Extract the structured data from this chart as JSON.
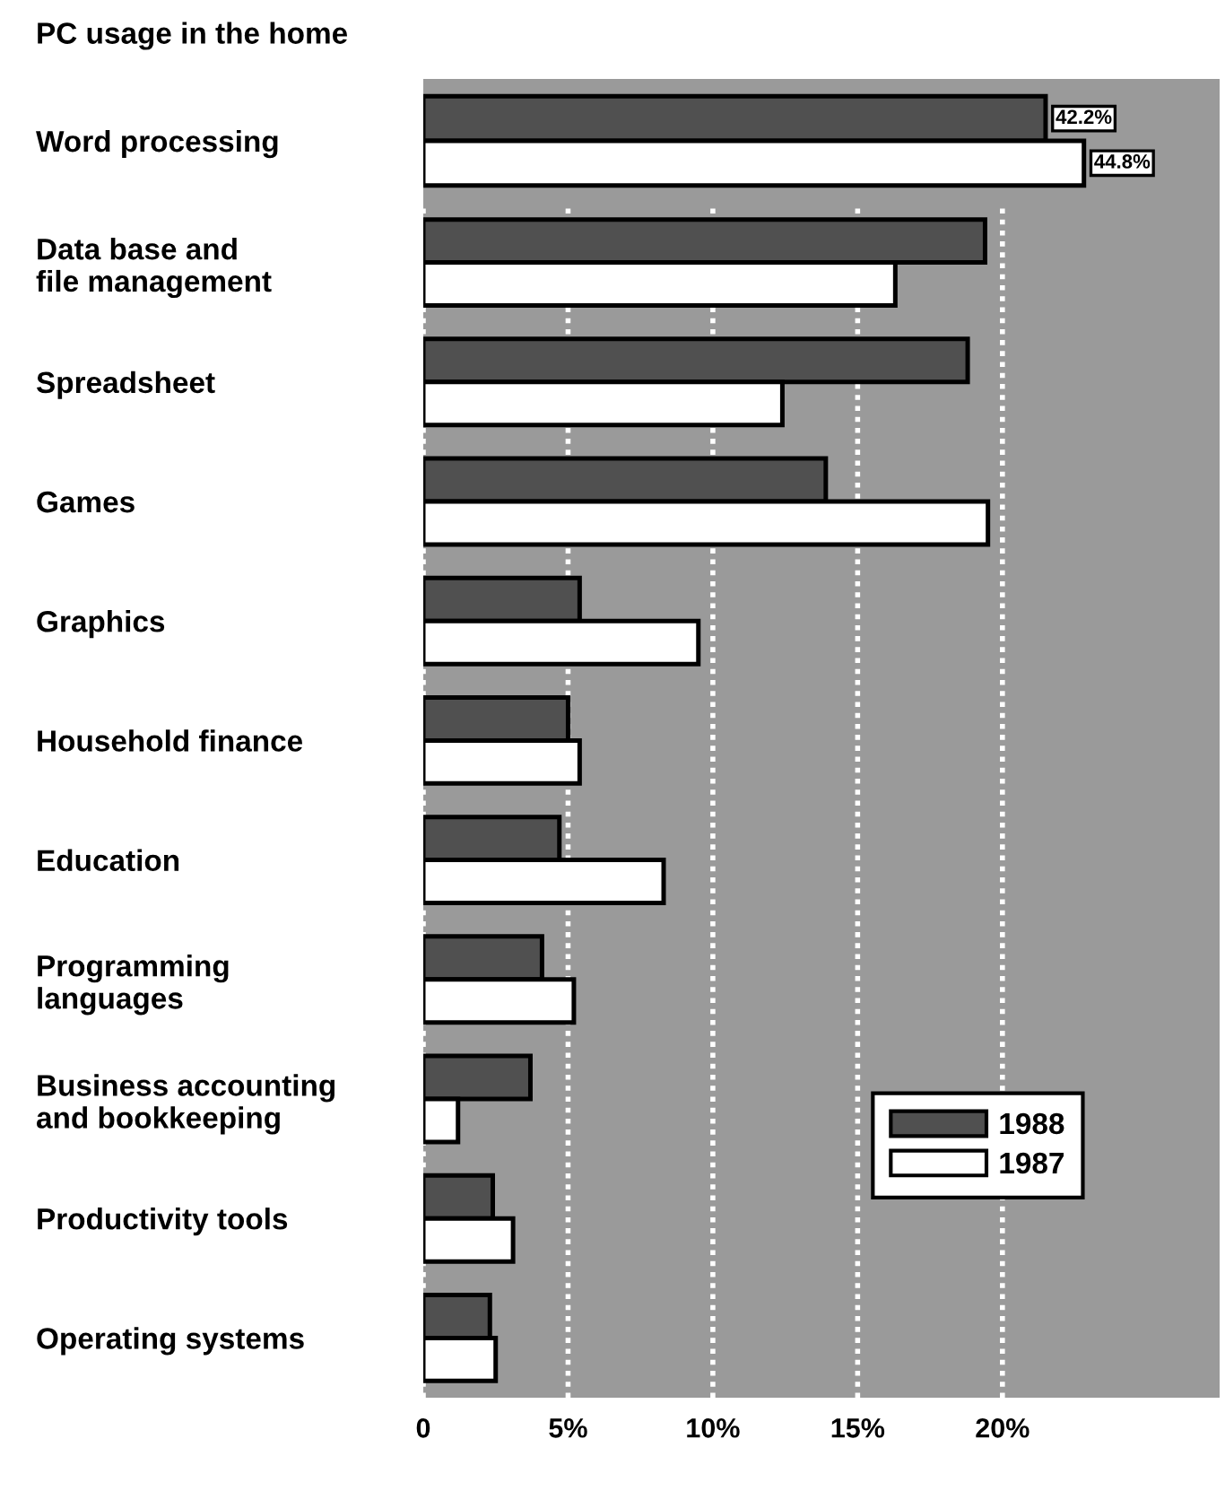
{
  "chart_data": [
    {
      "type": "bar",
      "orientation": "horizontal",
      "title": "PC usage in the home",
      "categories": [
        "Word processing"
      ],
      "series": [
        {
          "color": "#505050",
          "values": [
            42.2
          ],
          "value_labels": [
            "42.2%"
          ]
        },
        {
          "color": "#ffffff",
          "values": [
            44.8
          ],
          "value_labels": [
            "44.8%"
          ]
        }
      ],
      "xlim": [
        0,
        54
      ],
      "tick_labels": "y"
    },
    {
      "type": "bar",
      "orientation": "horizontal",
      "categories": [
        "Data base and\nfile management",
        "Spreadsheet",
        "Games",
        "Graphics",
        "Household finance",
        "Education",
        "Programming\nlanguages",
        "Business accounting\nand bookkeeping",
        "Productivity tools",
        "Operating systems"
      ],
      "series": [
        {
          "name": "1988",
          "color": "#505050",
          "values": [
            19.4,
            18.8,
            13.9,
            5.4,
            5.0,
            4.7,
            4.1,
            3.7,
            2.4,
            2.3
          ]
        },
        {
          "name": "1987",
          "color": "#ffffff",
          "values": [
            16.3,
            12.4,
            19.5,
            9.5,
            5.4,
            8.3,
            5.2,
            1.2,
            3.1,
            2.5
          ]
        }
      ],
      "xlim": [
        0,
        27.5
      ],
      "xticks": [
        0,
        {
          "value": 5,
          "label": "5%"
        },
        {
          "value": 10,
          "label": "10%"
        },
        {
          "value": 15,
          "label": "15%"
        },
        {
          "value": 20,
          "label": "20%"
        }
      ],
      "grid": "x",
      "legend": "bottom right"
    }
  ]
}
